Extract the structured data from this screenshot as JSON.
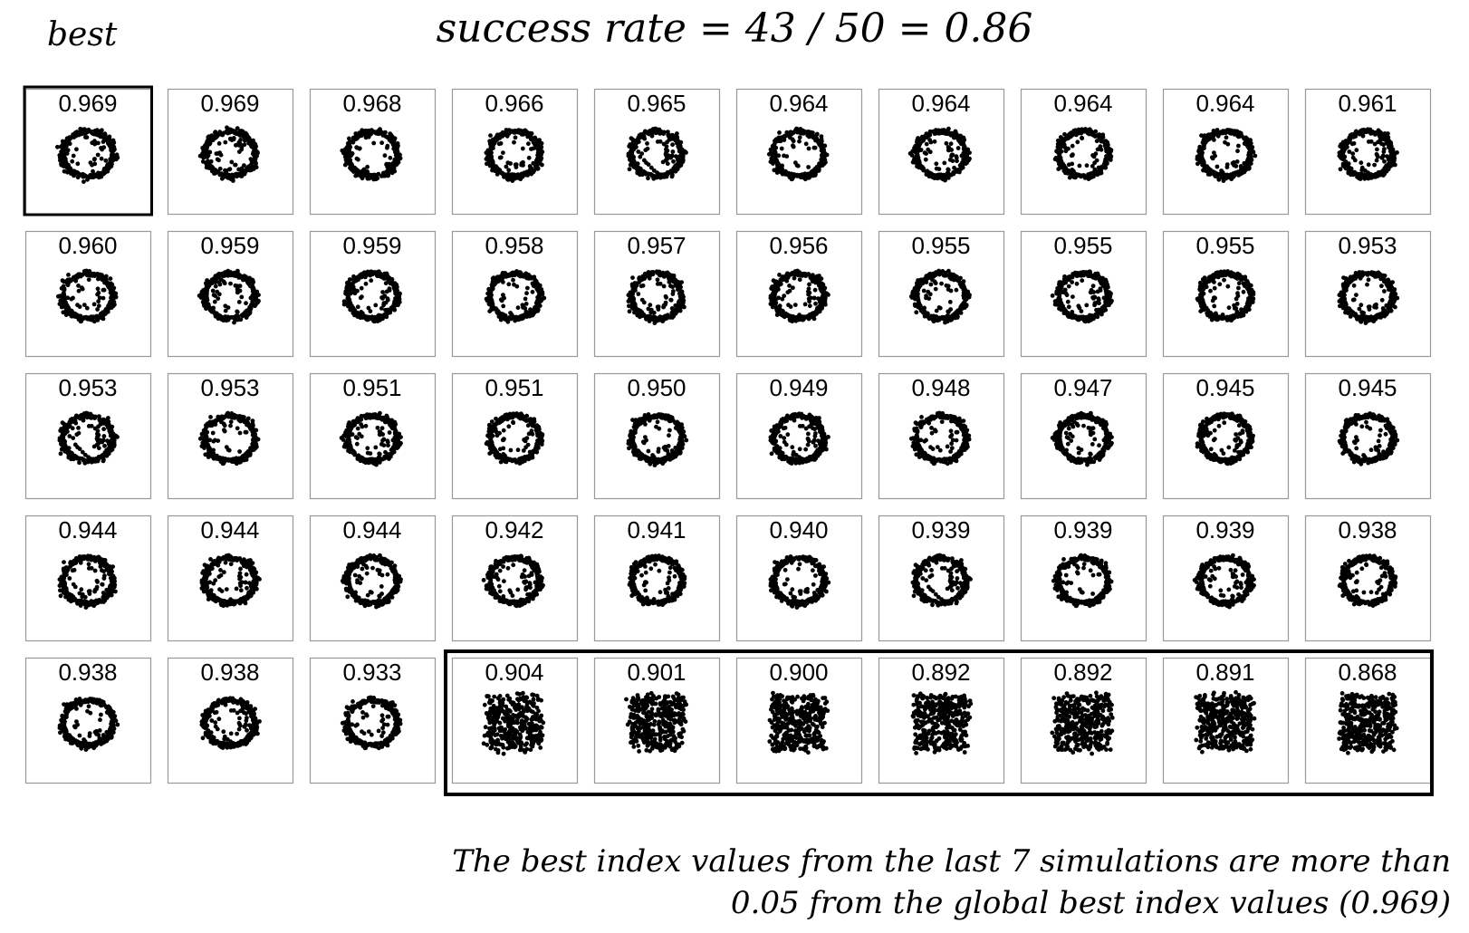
{
  "best_label": "best",
  "title": "success rate = 43 / 50 = 0.86",
  "caption": {
    "line1": "The best index values from the last 7 simulations are more than",
    "line2": "0.05 from the global best index values (0.969)"
  },
  "colors": {
    "ink": "#000000",
    "panel_border": "#999999",
    "highlight_border": "#000000"
  },
  "chart_data": {
    "type": "scatter",
    "layout": "small-multiples grid, 5 rows x 10 columns, sorted descending by index value",
    "rows": 5,
    "cols": 10,
    "panels": [
      {
        "value": "0.969",
        "shape": "ring"
      },
      {
        "value": "0.969",
        "shape": "ring"
      },
      {
        "value": "0.968",
        "shape": "ring"
      },
      {
        "value": "0.966",
        "shape": "ring"
      },
      {
        "value": "0.965",
        "shape": "ring"
      },
      {
        "value": "0.964",
        "shape": "ring"
      },
      {
        "value": "0.964",
        "shape": "ring"
      },
      {
        "value": "0.964",
        "shape": "ring"
      },
      {
        "value": "0.964",
        "shape": "ring"
      },
      {
        "value": "0.961",
        "shape": "ring"
      },
      {
        "value": "0.960",
        "shape": "ring"
      },
      {
        "value": "0.959",
        "shape": "ring"
      },
      {
        "value": "0.959",
        "shape": "ring"
      },
      {
        "value": "0.958",
        "shape": "ring"
      },
      {
        "value": "0.957",
        "shape": "ring"
      },
      {
        "value": "0.956",
        "shape": "ring"
      },
      {
        "value": "0.955",
        "shape": "ring"
      },
      {
        "value": "0.955",
        "shape": "ring"
      },
      {
        "value": "0.955",
        "shape": "ring"
      },
      {
        "value": "0.953",
        "shape": "ring"
      },
      {
        "value": "0.953",
        "shape": "ring"
      },
      {
        "value": "0.953",
        "shape": "ring"
      },
      {
        "value": "0.951",
        "shape": "ring"
      },
      {
        "value": "0.951",
        "shape": "ring"
      },
      {
        "value": "0.950",
        "shape": "ring"
      },
      {
        "value": "0.949",
        "shape": "ring"
      },
      {
        "value": "0.948",
        "shape": "ring"
      },
      {
        "value": "0.947",
        "shape": "ring"
      },
      {
        "value": "0.945",
        "shape": "ring"
      },
      {
        "value": "0.945",
        "shape": "ring"
      },
      {
        "value": "0.944",
        "shape": "ring"
      },
      {
        "value": "0.944",
        "shape": "ring"
      },
      {
        "value": "0.944",
        "shape": "ring"
      },
      {
        "value": "0.942",
        "shape": "ring"
      },
      {
        "value": "0.941",
        "shape": "ring"
      },
      {
        "value": "0.940",
        "shape": "ring"
      },
      {
        "value": "0.939",
        "shape": "ring"
      },
      {
        "value": "0.939",
        "shape": "ring"
      },
      {
        "value": "0.939",
        "shape": "ring"
      },
      {
        "value": "0.938",
        "shape": "ring"
      },
      {
        "value": "0.938",
        "shape": "ring"
      },
      {
        "value": "0.938",
        "shape": "ring"
      },
      {
        "value": "0.933",
        "shape": "ring"
      },
      {
        "value": "0.904",
        "shape": "blob"
      },
      {
        "value": "0.901",
        "shape": "blob"
      },
      {
        "value": "0.900",
        "shape": "blob"
      },
      {
        "value": "0.892",
        "shape": "blob"
      },
      {
        "value": "0.892",
        "shape": "blob"
      },
      {
        "value": "0.891",
        "shape": "blob"
      },
      {
        "value": "0.868",
        "shape": "blob"
      }
    ],
    "highlight_best_panel": 0,
    "highlight_failed_range": [
      43,
      49
    ]
  }
}
